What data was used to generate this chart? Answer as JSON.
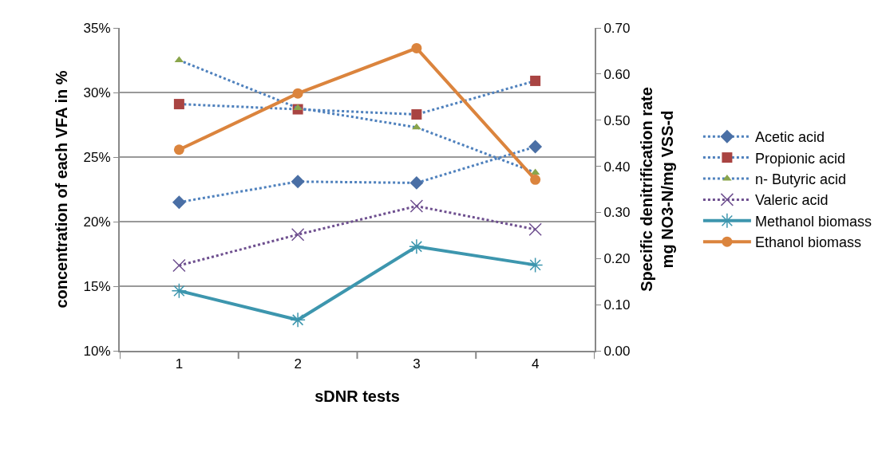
{
  "chart_data": {
    "type": "line",
    "xlabel": "sDNR tests",
    "ylabel": "concentration of each VFA in %",
    "y2label": "Specific denitrification rate\nmg NO3-N/mg VSS-d",
    "categories": [
      "1",
      "2",
      "3",
      "4"
    ],
    "ylim": [
      10,
      35
    ],
    "yticks": [
      {
        "value": 10,
        "label": "10%"
      },
      {
        "value": 15,
        "label": "15%"
      },
      {
        "value": 20,
        "label": "20%"
      },
      {
        "value": 25,
        "label": "25%"
      },
      {
        "value": 30,
        "label": "30%"
      },
      {
        "value": 35,
        "label": "35%"
      }
    ],
    "y2lim": [
      0,
      0.7
    ],
    "y2ticks": [
      {
        "value": 0,
        "label": "0.00"
      },
      {
        "value": 0.1,
        "label": "0.10"
      },
      {
        "value": 0.2,
        "label": "0.20"
      },
      {
        "value": 0.3,
        "label": "0.30"
      },
      {
        "value": 0.4,
        "label": "0.40"
      },
      {
        "value": 0.5,
        "label": "0.50"
      },
      {
        "value": 0.6,
        "label": "0.60"
      },
      {
        "value": 0.7,
        "label": "0.70"
      }
    ],
    "grid": "y",
    "legend": "right",
    "series": [
      {
        "name": "Acetic acid",
        "color": "#4f81bd",
        "marker": "diamond",
        "colors": [
          "#4a6fa5",
          "#4a6fa5",
          "#4a6fa5",
          "#4a6fa5"
        ],
        "line_style": "dotted",
        "values": [
          21.5,
          23.1,
          23.0,
          25.8
        ]
      },
      {
        "name": "Propionic acid",
        "color": "#4f81bd",
        "marker": "square",
        "colors": [
          "#a94442",
          "#a94442",
          "#a94442",
          "#a94442"
        ],
        "line_style": "dotted",
        "values": [
          29.1,
          28.7,
          28.3,
          30.9
        ]
      },
      {
        "name": "n- Butyric acid",
        "color": "#4f81bd",
        "marker": "triangle",
        "colors": [
          "#8aa54b",
          "#8aa54b",
          "#8aa54b",
          "#8aa54b"
        ],
        "line_style": "dotted",
        "values": [
          32.5,
          28.8,
          27.3,
          23.8
        ]
      },
      {
        "name": "Valeric acid",
        "color": "#6e4f8f",
        "marker": "cross",
        "line_style": "dotted",
        "values": [
          16.6,
          19.0,
          21.2,
          19.4
        ]
      },
      {
        "name": "Methanol biomass",
        "color": "#3d96ae",
        "marker": "cross",
        "line_style": "solid",
        "axis": "y2",
        "values": [
          0.13,
          0.067,
          0.226,
          0.186
        ]
      },
      {
        "name": "Ethanol biomass",
        "color": "#db843d",
        "marker": "circle",
        "line_style": "solid",
        "axis": "y2",
        "values": [
          0.436,
          0.558,
          0.656,
          0.371
        ]
      }
    ]
  }
}
